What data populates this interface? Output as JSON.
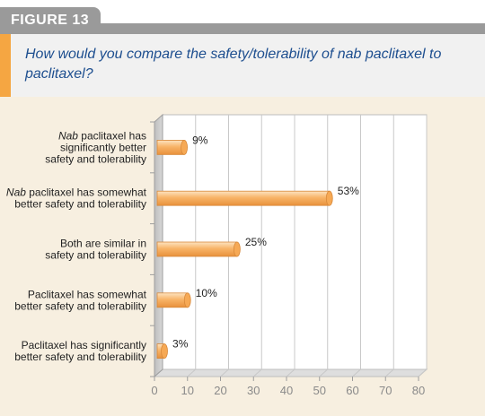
{
  "figure": {
    "label": "FIGURE 13"
  },
  "question": "How would you compare the safety/tolerability of nab paclitaxel to paclitaxel?",
  "colors": {
    "accent": "#f5a642",
    "bar": "#f8b468",
    "title": "#1d4e8f",
    "background": "#f7efe0"
  },
  "chart_data": {
    "type": "bar",
    "orientation": "horizontal",
    "categories": [
      [
        "Nab paclitaxel has",
        "significantly better",
        "safety and tolerability"
      ],
      [
        "Nab paclitaxel has somewhat",
        "better safety and tolerability"
      ],
      [
        "Both are similar in",
        "safety and tolerability"
      ],
      [
        "Paclitaxel has somewhat",
        "better safety and tolerability"
      ],
      [
        "Paclitaxel has significantly",
        "better safety and tolerability"
      ]
    ],
    "values": [
      9,
      53,
      25,
      10,
      3
    ],
    "value_labels": [
      "9%",
      "53%",
      "25%",
      "10%",
      "3%"
    ],
    "xlim": [
      0,
      80
    ],
    "ticks": [
      0,
      10,
      20,
      30,
      40,
      50,
      60,
      70,
      80
    ],
    "grid": true
  }
}
